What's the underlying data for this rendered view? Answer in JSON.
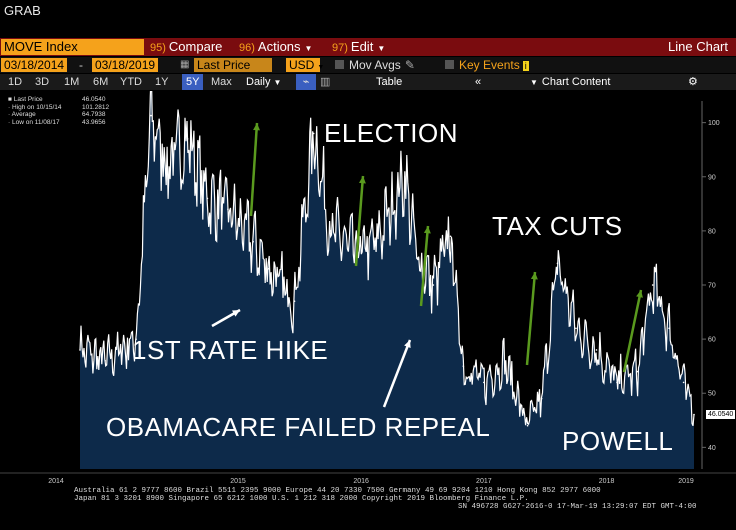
{
  "window": {
    "title": "GRAB"
  },
  "command_bar": {
    "ticker": "MOVE Index",
    "compare": {
      "num": "95)",
      "label": "Compare"
    },
    "actions": {
      "num": "96)",
      "label": "Actions"
    },
    "edit": {
      "num": "97)",
      "label": "Edit"
    },
    "view_name": "Line Chart"
  },
  "toolbar": {
    "start_date": "03/18/2014",
    "end_date": "03/18/2019",
    "field": "Last Price",
    "currency": "USD",
    "mov_avgs": "Mov Avgs",
    "key_events": "Key Events"
  },
  "periods": {
    "items": [
      "1D",
      "3D",
      "1M",
      "6M",
      "YTD",
      "1Y",
      "5Y",
      "Max"
    ],
    "active": "5Y",
    "frequency": "Daily",
    "table_label": "Table",
    "chart_content": "Chart Content"
  },
  "legend": {
    "last_price": {
      "label": "Last Price",
      "value": "46.0540"
    },
    "high": {
      "label": "High on 10/15/14",
      "value": "101.2812"
    },
    "average": {
      "label": "Average",
      "value": "64.7938"
    },
    "low": {
      "label": "Low on 11/08/17",
      "value": "43.9656"
    }
  },
  "annotations": {
    "election": "ELECTION",
    "tax_cuts": "TAX CUTS",
    "first_rate_hike": "1ST RATE HIKE",
    "obamacare": "OBAMACARE FAILED REPEAL",
    "powell": "POWELL"
  },
  "last_value_tag": "46.0540",
  "footer": {
    "line1": "Australia 61 2 9777 8600 Brazil 5511 2395 9000 Europe 44 20 7330 7500 Germany 49 69 9204 1210 Hong Kong 852 2977 6000",
    "line2": "Japan 81 3 3201 8900        Singapore 65 6212 1000        U.S. 1 212 318 2000                Copyright 2019 Bloomberg Finance L.P.",
    "line3": "SN 496728 G627-2616-0 17-Mar-19 13:29:07 EDT  GMT-4:00"
  },
  "colors": {
    "accent": "#f5a21b",
    "command_bar": "#7a0c0f",
    "fill": "#0d2a4a",
    "arrow": "#5a9a1e"
  },
  "chart_data": {
    "type": "area",
    "x": [
      "2014-03-18",
      "2014-06-01",
      "2014-09-01",
      "2014-10-15",
      "2014-12-01",
      "2015-02-01",
      "2015-04-01",
      "2015-06-01",
      "2015-08-15",
      "2015-10-01",
      "2015-12-16",
      "2016-02-11",
      "2016-04-01",
      "2016-06-24",
      "2016-08-15",
      "2016-11-08",
      "2016-12-15",
      "2017-02-01",
      "2017-03-24",
      "2017-05-01",
      "2017-07-01",
      "2017-09-01",
      "2017-11-08",
      "2017-12-20",
      "2018-02-05",
      "2018-04-01",
      "2018-06-01",
      "2018-08-01",
      "2018-10-01",
      "2018-11-15",
      "2019-01-03",
      "2019-02-15",
      "2019-03-18"
    ],
    "y": [
      58,
      56,
      60,
      101.3,
      92,
      97,
      86,
      84,
      78,
      73,
      67,
      98,
      80,
      76,
      78,
      90,
      75,
      70,
      79,
      55,
      52,
      56,
      44,
      49,
      74,
      62,
      58,
      52,
      54,
      70,
      62,
      52,
      46.05
    ],
    "xlabel": "",
    "ylabel": "",
    "xticks": [
      "2014",
      "2015",
      "2016",
      "2017",
      "2018",
      "2019"
    ],
    "yticks": [
      40,
      50,
      60,
      70,
      80,
      90,
      100
    ],
    "ylim": [
      36,
      104
    ],
    "series": [
      {
        "name": "Last Price",
        "color": "#ffffff"
      }
    ],
    "grid": false,
    "legend": "top-left"
  }
}
